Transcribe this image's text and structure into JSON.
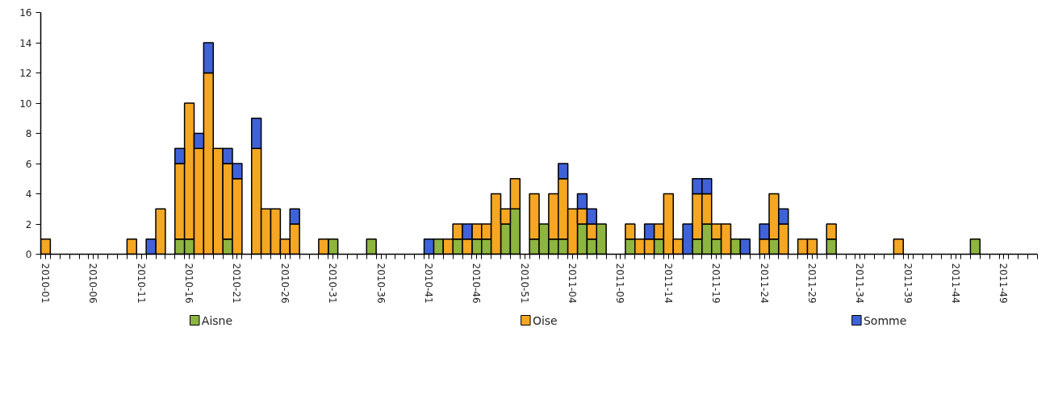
{
  "chart_data": {
    "type": "bar",
    "stacked": true,
    "legend": "bottom",
    "categories": [
      "2010-01",
      null,
      null,
      null,
      null,
      "2010-06",
      null,
      null,
      null,
      null,
      "2010-11",
      null,
      null,
      null,
      null,
      "2010-16",
      null,
      null,
      null,
      null,
      "2010-21",
      null,
      null,
      null,
      null,
      "2010-26",
      null,
      null,
      null,
      null,
      "2010-31",
      null,
      null,
      null,
      null,
      "2010-36",
      null,
      null,
      null,
      null,
      "2010-41",
      null,
      null,
      null,
      null,
      "2010-46",
      null,
      null,
      null,
      null,
      "2010-51",
      null,
      null,
      null,
      null,
      "2011-04",
      null,
      null,
      null,
      null,
      "2011-09",
      null,
      null,
      null,
      null,
      "2011-14",
      null,
      null,
      null,
      null,
      "2011-19",
      null,
      null,
      null,
      null,
      "2011-24",
      null,
      null,
      null,
      null,
      "2011-29",
      null,
      null,
      null,
      null,
      "2011-34",
      null,
      null,
      null,
      null,
      "2011-39",
      null,
      null,
      null,
      null,
      "2011-44",
      null,
      null,
      null,
      null,
      "2011-49",
      null,
      null,
      null
    ],
    "ylim": [
      0,
      16
    ],
    "yticks": [
      0,
      2,
      4,
      6,
      8,
      10,
      12,
      14,
      16
    ],
    "series": [
      {
        "name": "Aisne",
        "color": "#8db53f",
        "values": [
          0,
          0,
          0,
          0,
          0,
          0,
          0,
          0,
          0,
          0,
          0,
          0,
          0,
          0,
          1,
          1,
          0,
          0,
          0,
          1,
          0,
          0,
          0,
          0,
          0,
          0,
          0,
          0,
          0,
          0,
          1,
          0,
          0,
          0,
          1,
          0,
          0,
          0,
          0,
          0,
          0,
          1,
          0,
          1,
          0,
          1,
          1,
          0,
          2,
          3,
          0,
          1,
          2,
          1,
          1,
          0,
          2,
          1,
          2,
          0,
          0,
          1,
          0,
          0,
          1,
          0,
          0,
          0,
          1,
          2,
          1,
          0,
          1,
          0,
          0,
          0,
          1,
          0,
          0,
          0,
          0,
          0,
          1,
          0,
          0,
          0,
          0,
          0,
          0,
          0,
          0,
          0,
          0,
          0,
          0,
          0,
          0,
          1,
          0,
          0,
          0,
          0,
          0,
          0
        ]
      },
      {
        "name": "Oise",
        "color": "#f5a623",
        "values": [
          1,
          0,
          0,
          0,
          0,
          0,
          0,
          0,
          0,
          1,
          0,
          0,
          3,
          0,
          5,
          9,
          7,
          12,
          7,
          5,
          5,
          0,
          7,
          3,
          3,
          1,
          2,
          0,
          0,
          1,
          0,
          0,
          0,
          0,
          0,
          0,
          0,
          0,
          0,
          0,
          0,
          0,
          1,
          1,
          1,
          1,
          1,
          4,
          1,
          2,
          0,
          3,
          0,
          3,
          4,
          3,
          1,
          1,
          0,
          0,
          0,
          1,
          1,
          1,
          1,
          4,
          1,
          0,
          3,
          2,
          1,
          2,
          0,
          0,
          0,
          1,
          3,
          2,
          0,
          1,
          1,
          0,
          1,
          0,
          0,
          0,
          0,
          0,
          0,
          1,
          0,
          0,
          0,
          0,
          0,
          0,
          0,
          0,
          0,
          0,
          0,
          0,
          0,
          0
        ]
      },
      {
        "name": "Somme",
        "color": "#3f62d8",
        "values": [
          0,
          0,
          0,
          0,
          0,
          0,
          0,
          0,
          0,
          0,
          0,
          1,
          0,
          0,
          1,
          0,
          1,
          2,
          0,
          1,
          1,
          0,
          2,
          0,
          0,
          0,
          1,
          0,
          0,
          0,
          0,
          0,
          0,
          0,
          0,
          0,
          0,
          0,
          0,
          0,
          1,
          0,
          0,
          0,
          1,
          0,
          0,
          0,
          0,
          0,
          0,
          0,
          0,
          0,
          1,
          0,
          1,
          1,
          0,
          0,
          0,
          0,
          0,
          1,
          0,
          0,
          0,
          2,
          1,
          1,
          0,
          0,
          0,
          1,
          0,
          1,
          0,
          1,
          0,
          0,
          0,
          0,
          0,
          0,
          0,
          0,
          0,
          0,
          0,
          0,
          0,
          0,
          0,
          0,
          0,
          0,
          0,
          0,
          0,
          0,
          0,
          0,
          0,
          0
        ]
      }
    ]
  }
}
